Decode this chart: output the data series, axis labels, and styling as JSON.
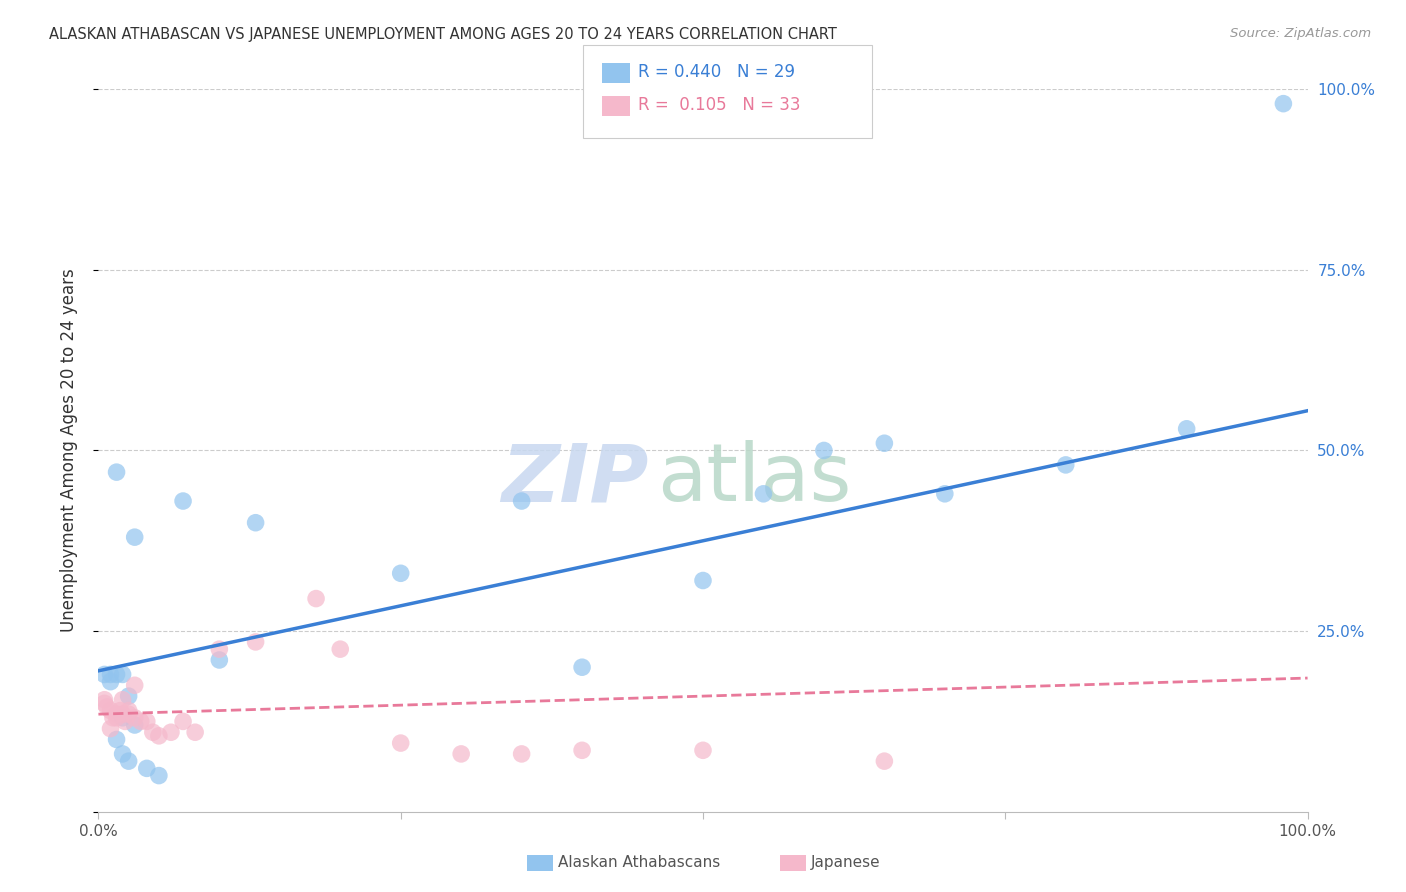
{
  "title": "ALASKAN ATHABASCAN VS JAPANESE UNEMPLOYMENT AMONG AGES 20 TO 24 YEARS CORRELATION CHART",
  "source": "Source: ZipAtlas.com",
  "ylabel": "Unemployment Among Ages 20 to 24 years",
  "xlim": [
    0,
    1
  ],
  "ylim": [
    0,
    1
  ],
  "legend_R1": "0.440",
  "legend_N1": "29",
  "legend_R2": "0.105",
  "legend_N2": "33",
  "blue_color": "#92C4EE",
  "pink_color": "#F5B8CB",
  "blue_line_color": "#3A7FD5",
  "pink_line_color": "#E8799A",
  "watermark_zip_color": "#C8D8F0",
  "watermark_atlas_color": "#B8D8C8",
  "grid_color": "#CCCCCC",
  "background_color": "#FFFFFF",
  "title_color": "#333333",
  "source_color": "#999999",
  "axis_label_color": "#333333",
  "tick_color": "#3A7FD5",
  "alaskan_x": [
    0.005,
    0.01,
    0.015,
    0.02,
    0.025,
    0.01,
    0.02,
    0.03,
    0.015,
    0.02,
    0.025,
    0.04,
    0.05,
    0.07,
    0.13,
    0.35,
    0.55,
    0.65,
    0.7,
    0.8,
    0.9,
    0.98,
    0.25,
    0.015,
    0.03,
    0.5,
    0.4,
    0.6,
    0.1
  ],
  "alaskan_y": [
    0.19,
    0.19,
    0.19,
    0.19,
    0.16,
    0.18,
    0.13,
    0.12,
    0.1,
    0.08,
    0.07,
    0.06,
    0.05,
    0.43,
    0.4,
    0.43,
    0.44,
    0.51,
    0.44,
    0.48,
    0.53,
    0.98,
    0.33,
    0.47,
    0.38,
    0.32,
    0.2,
    0.5,
    0.21
  ],
  "japanese_x": [
    0.005,
    0.007,
    0.01,
    0.012,
    0.015,
    0.018,
    0.02,
    0.022,
    0.025,
    0.03,
    0.035,
    0.04,
    0.045,
    0.05,
    0.06,
    0.07,
    0.08,
    0.1,
    0.13,
    0.18,
    0.2,
    0.25,
    0.3,
    0.35,
    0.4,
    0.5,
    0.65,
    0.02,
    0.01,
    0.015,
    0.025,
    0.03,
    0.005
  ],
  "japanese_y": [
    0.155,
    0.145,
    0.14,
    0.13,
    0.135,
    0.14,
    0.135,
    0.125,
    0.135,
    0.13,
    0.125,
    0.125,
    0.11,
    0.105,
    0.11,
    0.125,
    0.11,
    0.225,
    0.235,
    0.295,
    0.225,
    0.095,
    0.08,
    0.08,
    0.085,
    0.085,
    0.07,
    0.155,
    0.115,
    0.13,
    0.14,
    0.175,
    0.15
  ],
  "blue_line_x0": 0.0,
  "blue_line_y0": 0.195,
  "blue_line_x1": 1.0,
  "blue_line_y1": 0.555,
  "pink_line_x0": 0.0,
  "pink_line_y0": 0.135,
  "pink_line_x1": 1.0,
  "pink_line_y1": 0.185,
  "marker_size": 160
}
